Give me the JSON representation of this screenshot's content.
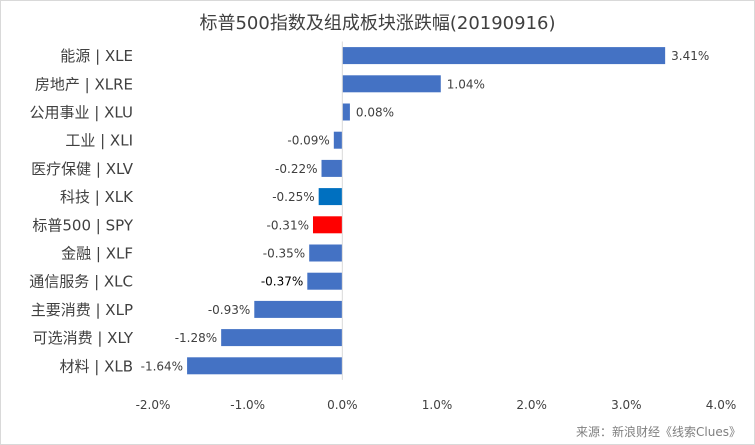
{
  "chart_data": {
    "type": "bar",
    "orientation": "horizontal",
    "title": "标普500指数及组成板块涨跌幅(20190916)",
    "categories": [
      "能源 | XLE",
      "房地产 | XLRE",
      "公用事业 | XLU",
      "工业 | XLI",
      "医疗保健 | XLV",
      "科技 | XLK",
      "标普500 | SPY",
      "金融 | XLF",
      "通信服务 | XLC",
      "主要消费 | XLP",
      "可选消费 | XLY",
      "材料 | XLB"
    ],
    "values": [
      3.41,
      1.04,
      0.08,
      -0.09,
      -0.22,
      -0.25,
      -0.31,
      -0.35,
      -0.37,
      -0.93,
      -1.28,
      -1.64
    ],
    "data_labels": [
      "3.41%",
      "1.04%",
      "0.08%",
      "-0.09%",
      "-0.22%",
      "-0.25%",
      "-0.31%",
      "-0.35%",
      "-0.37%",
      "-0.93%",
      "-1.28%",
      "-1.64%"
    ],
    "xlim": [
      -2.0,
      4.0
    ],
    "x_ticks": [
      -2.0,
      -1.0,
      0.0,
      1.0,
      2.0,
      3.0,
      4.0
    ],
    "x_tick_labels": [
      "-2.0%",
      "-1.0%",
      "0.0%",
      "1.0%",
      "2.0%",
      "3.0%",
      "4.0%"
    ],
    "bar_colors": [
      "#4472c4",
      "#4472c4",
      "#4472c4",
      "#4472c4",
      "#4472c4",
      "#0070c0",
      "#ff0000",
      "#4472c4",
      "#4472c4",
      "#4472c4",
      "#4472c4",
      "#4472c4"
    ],
    "label_colors": [
      "#404040",
      "#404040",
      "#404040",
      "#404040",
      "#404040",
      "#404040",
      "#404040",
      "#404040",
      "#000000",
      "#404040",
      "#404040",
      "#404040"
    ],
    "grid": false,
    "legend": "none"
  },
  "source": "来源：新浪财经《线索Clues》"
}
